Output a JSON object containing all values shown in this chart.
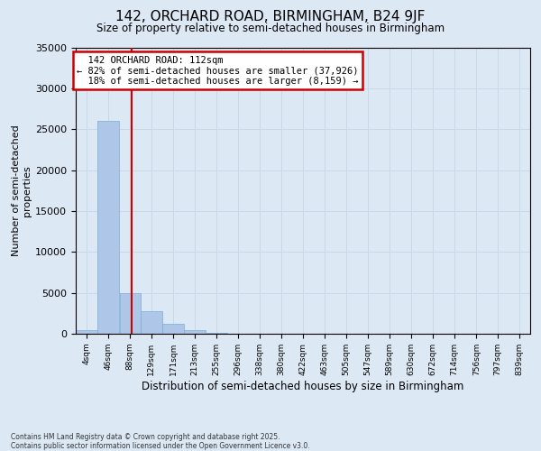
{
  "title1": "142, ORCHARD ROAD, BIRMINGHAM, B24 9JF",
  "title2": "Size of property relative to semi-detached houses in Birmingham",
  "xlabel": "Distribution of semi-detached houses by size in Birmingham",
  "ylabel": "Number of semi-detached\nproperties",
  "footnote": "Contains HM Land Registry data © Crown copyright and database right 2025.\nContains public sector information licensed under the Open Government Licence v3.0.",
  "property_label": "142 ORCHARD ROAD: 112sqm",
  "pct_smaller": 82,
  "pct_larger": 18,
  "count_smaller": 37926,
  "count_larger": 8159,
  "bin_labels": [
    "4sqm",
    "46sqm",
    "88sqm",
    "129sqm",
    "171sqm",
    "213sqm",
    "255sqm",
    "296sqm",
    "338sqm",
    "380sqm",
    "422sqm",
    "463sqm",
    "505sqm",
    "547sqm",
    "589sqm",
    "630sqm",
    "672sqm",
    "714sqm",
    "756sqm",
    "797sqm",
    "839sqm"
  ],
  "bin_edges": [
    4,
    46,
    88,
    129,
    171,
    213,
    255,
    296,
    338,
    380,
    422,
    463,
    505,
    547,
    589,
    630,
    672,
    714,
    756,
    797,
    839
  ],
  "bar_values": [
    400,
    26000,
    5000,
    2800,
    1200,
    400,
    80,
    30,
    15,
    8,
    5,
    3,
    2,
    1,
    1,
    0,
    0,
    0,
    0,
    0
  ],
  "bar_color": "#aec6e8",
  "bar_edge_color": "#7aafd6",
  "grid_color": "#c8d8eb",
  "background_color": "#dde8f5",
  "vline_color": "#cc0000",
  "vline_x": 112,
  "ylim": [
    0,
    35000
  ],
  "yticks": [
    0,
    5000,
    10000,
    15000,
    20000,
    25000,
    30000,
    35000
  ]
}
